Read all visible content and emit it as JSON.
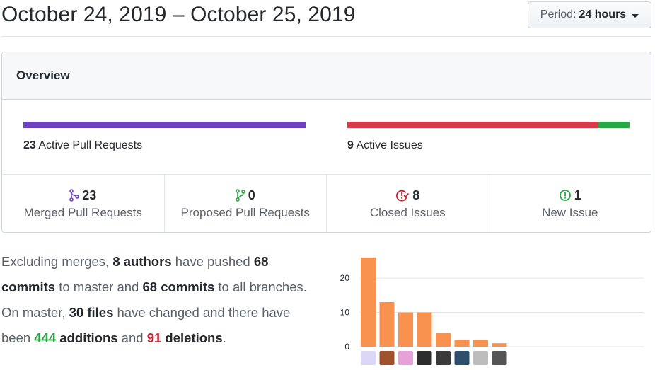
{
  "header": {
    "date_range": "October 24, 2019 – October 25, 2019",
    "period_label": "Period:",
    "period_value": "24 hours"
  },
  "overview": {
    "title": "Overview",
    "pull_requests": {
      "count": "23",
      "label": "Active Pull Requests",
      "color": "#6f42c1"
    },
    "issues": {
      "count": "9",
      "label": "Active Issues",
      "closed_fraction": 0.889,
      "color_closed": "#d73a49",
      "color_open": "#28a745"
    },
    "stats": [
      {
        "icon": "git-merge-icon",
        "count": "23",
        "label": "Merged Pull Requests",
        "color": "#6f42c1"
      },
      {
        "icon": "git-pull-request-icon",
        "count": "0",
        "label": "Proposed Pull Requests",
        "color": "#28a745"
      },
      {
        "icon": "issue-closed-icon",
        "count": "8",
        "label": "Closed Issues",
        "color": "#cb2431"
      },
      {
        "icon": "issue-opened-icon",
        "count": "1",
        "label": "New Issue",
        "color": "#28a745"
      }
    ]
  },
  "summary": {
    "t1": "Excluding merges, ",
    "authors": "8 authors",
    "t2": " have pushed ",
    "commits_master": "68 commits",
    "t3": " to master and ",
    "commits_all": "68 commits",
    "t4": " to all branches. On master, ",
    "files": "30 files",
    "t5": " have changed and there have been ",
    "additions": "444",
    "additions_word": " additions",
    "t6": " and ",
    "deletions": "91",
    "deletions_word": " deletions",
    "t7": "."
  },
  "chart_data": {
    "type": "bar",
    "categories": [
      "author-1",
      "author-2",
      "author-3",
      "author-4",
      "author-5",
      "author-6",
      "author-7",
      "author-8"
    ],
    "values": [
      26,
      13,
      10,
      10,
      4,
      2,
      2,
      1
    ],
    "yticks": [
      0,
      10,
      20
    ],
    "ylim": [
      0,
      26
    ],
    "bar_color": "#f9914f",
    "avatar_colors": [
      "#dcd6f7",
      "#a0522d",
      "#e8a0d8",
      "#2d2d2d",
      "#3a3a3a",
      "#2f4f6f",
      "#bdbdbd",
      "#555555"
    ]
  }
}
